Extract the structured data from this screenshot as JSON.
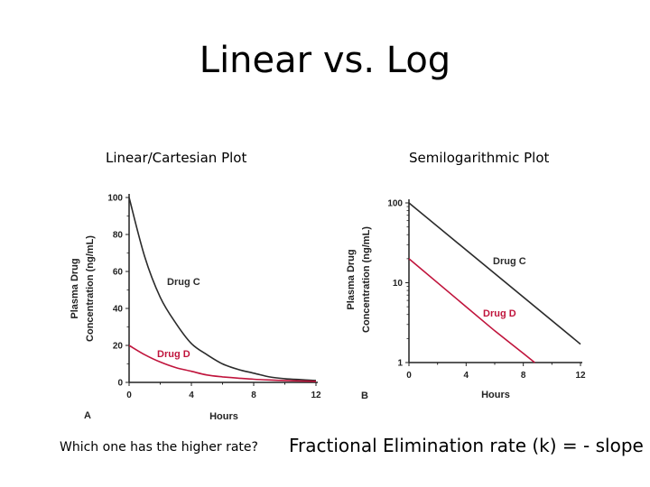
{
  "slide": {
    "title": "Linear vs. Log",
    "question": "Which one has the higher rate?",
    "formula": "Fractional Elimination rate (k) = - slope"
  },
  "colors": {
    "drug_c": "#2b2b2b",
    "drug_d": "#c0143c",
    "axis": "#222222"
  },
  "chart_data": [
    {
      "type": "line",
      "title": "Linear/Cartesian Plot",
      "panel_label": "A",
      "xlabel": "Hours",
      "ylabel": [
        "Plasma Drug",
        "Concentration (ng/mL)"
      ],
      "xlim": [
        0,
        12
      ],
      "ylim": [
        0,
        100
      ],
      "yscale": "linear",
      "xticks": [
        0,
        4,
        8,
        12
      ],
      "yticks": [
        0,
        20,
        40,
        60,
        80,
        100
      ],
      "grid": false,
      "series": [
        {
          "name": "Drug C",
          "x": [
            0,
            1,
            2,
            3,
            4,
            5,
            6,
            7,
            8,
            9,
            10,
            11,
            12
          ],
          "y": [
            100,
            68,
            46,
            32,
            21,
            15,
            10,
            7,
            5,
            3,
            2,
            1.5,
            1
          ]
        },
        {
          "name": "Drug D",
          "x": [
            0,
            1,
            2,
            3,
            4,
            5,
            6,
            7,
            8,
            9,
            10,
            11,
            12
          ],
          "y": [
            20,
            15,
            11,
            8,
            6,
            4,
            3,
            2.3,
            1.7,
            1.3,
            1,
            0.8,
            0.6
          ]
        }
      ]
    },
    {
      "type": "line",
      "title": "Semilogarithmic Plot",
      "panel_label": "B",
      "xlabel": "Hours",
      "ylabel": [
        "Plasma Drug",
        "Concentration (ng/mL)"
      ],
      "xlim": [
        0,
        12
      ],
      "ylim": [
        1,
        100
      ],
      "yscale": "log",
      "xticks": [
        0,
        4,
        8,
        12
      ],
      "yticks": [
        1,
        10,
        100
      ],
      "grid": false,
      "series": [
        {
          "name": "Drug C",
          "x": [
            0,
            12
          ],
          "y": [
            100,
            1.7
          ]
        },
        {
          "name": "Drug D",
          "x": [
            0,
            6,
            8,
            8.8
          ],
          "y": [
            20,
            2.5,
            1.3,
            1
          ]
        }
      ]
    }
  ]
}
